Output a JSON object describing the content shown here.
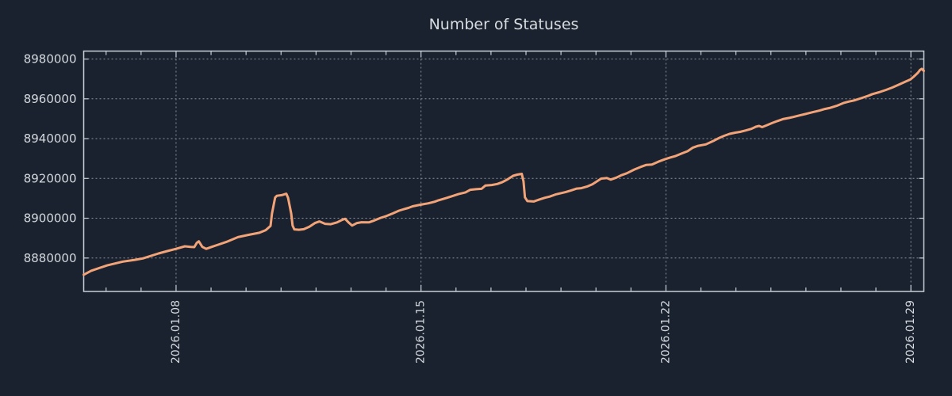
{
  "window": {
    "background": "#1a2230"
  },
  "chart_data": {
    "type": "line",
    "title": "Number of Statuses",
    "legend": "none",
    "grid": {
      "visible": true,
      "style": "dotted",
      "color": "#8f97a2"
    },
    "colors": {
      "background": "#1a2230",
      "axis_border": "#c9cfd7",
      "tick_label": "#d5d9dd",
      "title": "#d9dcdf",
      "series": "#f2a377"
    },
    "x": {
      "unit": "days_since_2026-01-08",
      "range_days": [
        -2.64,
        21.37
      ],
      "tick_days": [
        0,
        7,
        14,
        21
      ],
      "tick_labels": [
        "2026.01.08",
        "2026.01.15",
        "2026.01.22",
        "2026.01.29"
      ],
      "minor_tick_every_days": 1
    },
    "y": {
      "range": [
        8863200,
        8984000
      ],
      "ticks": [
        8880000,
        8900000,
        8920000,
        8940000,
        8960000,
        8980000
      ]
    },
    "series": [
      {
        "name": "Number of Statuses",
        "color": "#f2a377",
        "points_format": [
          "days_since_2026-01-08",
          "count"
        ],
        "points": [
          [
            -2.64,
            8871600
          ],
          [
            -2.43,
            8873600
          ],
          [
            -1.97,
            8876300
          ],
          [
            -1.52,
            8878200
          ],
          [
            -1.18,
            8879100
          ],
          [
            -0.95,
            8879800
          ],
          [
            -0.5,
            8882300
          ],
          [
            -0.25,
            8883500
          ],
          [
            0.0,
            8884600
          ],
          [
            0.25,
            8885900
          ],
          [
            0.42,
            8885600
          ],
          [
            0.52,
            8885500
          ],
          [
            0.59,
            8887600
          ],
          [
            0.65,
            8888400
          ],
          [
            0.75,
            8885600
          ],
          [
            0.86,
            8884600
          ],
          [
            1.02,
            8885600
          ],
          [
            1.2,
            8886700
          ],
          [
            1.47,
            8888300
          ],
          [
            1.77,
            8890500
          ],
          [
            2.06,
            8891600
          ],
          [
            2.38,
            8892700
          ],
          [
            2.56,
            8894000
          ],
          [
            2.7,
            8896100
          ],
          [
            2.74,
            8902300
          ],
          [
            2.83,
            8910400
          ],
          [
            2.88,
            8911300
          ],
          [
            3.02,
            8911600
          ],
          [
            3.15,
            8912300
          ],
          [
            3.2,
            8910300
          ],
          [
            3.29,
            8902300
          ],
          [
            3.33,
            8896300
          ],
          [
            3.38,
            8894400
          ],
          [
            3.51,
            8894200
          ],
          [
            3.65,
            8894500
          ],
          [
            3.81,
            8895700
          ],
          [
            3.97,
            8897600
          ],
          [
            4.1,
            8898400
          ],
          [
            4.26,
            8897200
          ],
          [
            4.42,
            8897000
          ],
          [
            4.6,
            8897900
          ],
          [
            4.76,
            8899300
          ],
          [
            4.83,
            8899700
          ],
          [
            4.94,
            8897700
          ],
          [
            5.03,
            8896300
          ],
          [
            5.17,
            8897600
          ],
          [
            5.3,
            8898000
          ],
          [
            5.51,
            8897900
          ],
          [
            5.67,
            8898900
          ],
          [
            5.85,
            8900200
          ],
          [
            6.01,
            8901100
          ],
          [
            6.19,
            8902400
          ],
          [
            6.37,
            8903800
          ],
          [
            6.48,
            8904400
          ],
          [
            6.64,
            8905200
          ],
          [
            6.76,
            8906000
          ],
          [
            6.98,
            8906800
          ],
          [
            7.21,
            8907500
          ],
          [
            7.39,
            8908300
          ],
          [
            7.5,
            8909000
          ],
          [
            7.71,
            8910100
          ],
          [
            7.89,
            8911100
          ],
          [
            8.07,
            8912100
          ],
          [
            8.27,
            8913000
          ],
          [
            8.41,
            8914300
          ],
          [
            8.57,
            8914600
          ],
          [
            8.73,
            8914800
          ],
          [
            8.84,
            8916400
          ],
          [
            9.02,
            8916700
          ],
          [
            9.18,
            8917200
          ],
          [
            9.32,
            8918100
          ],
          [
            9.48,
            8919600
          ],
          [
            9.63,
            8921300
          ],
          [
            9.75,
            8921900
          ],
          [
            9.88,
            8922300
          ],
          [
            9.93,
            8918500
          ],
          [
            9.97,
            8910500
          ],
          [
            10.04,
            8908600
          ],
          [
            10.22,
            8908400
          ],
          [
            10.38,
            8909400
          ],
          [
            10.54,
            8910300
          ],
          [
            10.68,
            8910900
          ],
          [
            10.84,
            8911900
          ],
          [
            11.13,
            8913100
          ],
          [
            11.29,
            8914000
          ],
          [
            11.45,
            8914900
          ],
          [
            11.58,
            8915100
          ],
          [
            11.74,
            8915900
          ],
          [
            11.9,
            8917100
          ],
          [
            12.04,
            8918700
          ],
          [
            12.15,
            8919900
          ],
          [
            12.31,
            8920200
          ],
          [
            12.42,
            8919400
          ],
          [
            12.58,
            8920400
          ],
          [
            12.72,
            8921600
          ],
          [
            12.88,
            8922600
          ],
          [
            13.1,
            8924500
          ],
          [
            13.28,
            8925800
          ],
          [
            13.44,
            8926800
          ],
          [
            13.6,
            8927000
          ],
          [
            13.78,
            8928400
          ],
          [
            13.96,
            8929600
          ],
          [
            14.12,
            8930500
          ],
          [
            14.28,
            8931300
          ],
          [
            14.46,
            8932600
          ],
          [
            14.62,
            8933700
          ],
          [
            14.76,
            8935400
          ],
          [
            14.92,
            8936400
          ],
          [
            15.14,
            8937100
          ],
          [
            15.37,
            8939000
          ],
          [
            15.53,
            8940400
          ],
          [
            15.66,
            8941400
          ],
          [
            15.82,
            8942400
          ],
          [
            15.98,
            8943000
          ],
          [
            16.12,
            8943400
          ],
          [
            16.28,
            8944100
          ],
          [
            16.44,
            8944900
          ],
          [
            16.57,
            8946000
          ],
          [
            16.66,
            8946400
          ],
          [
            16.75,
            8945800
          ],
          [
            16.89,
            8946800
          ],
          [
            17.03,
            8947800
          ],
          [
            17.18,
            8948800
          ],
          [
            17.34,
            8949800
          ],
          [
            17.52,
            8950400
          ],
          [
            17.64,
            8950900
          ],
          [
            17.82,
            8951700
          ],
          [
            18.02,
            8952500
          ],
          [
            18.2,
            8953300
          ],
          [
            18.39,
            8954100
          ],
          [
            18.54,
            8954900
          ],
          [
            18.7,
            8955500
          ],
          [
            18.88,
            8956500
          ],
          [
            19.07,
            8957900
          ],
          [
            19.22,
            8958600
          ],
          [
            19.38,
            8959200
          ],
          [
            19.61,
            8960500
          ],
          [
            19.79,
            8961600
          ],
          [
            19.9,
            8962400
          ],
          [
            20.09,
            8963300
          ],
          [
            20.29,
            8964500
          ],
          [
            20.47,
            8965700
          ],
          [
            20.65,
            8967100
          ],
          [
            20.83,
            8968500
          ],
          [
            20.99,
            8969800
          ],
          [
            21.08,
            8971100
          ],
          [
            21.2,
            8973100
          ],
          [
            21.26,
            8974500
          ],
          [
            21.31,
            8975100
          ],
          [
            21.37,
            8974000
          ]
        ]
      }
    ]
  }
}
